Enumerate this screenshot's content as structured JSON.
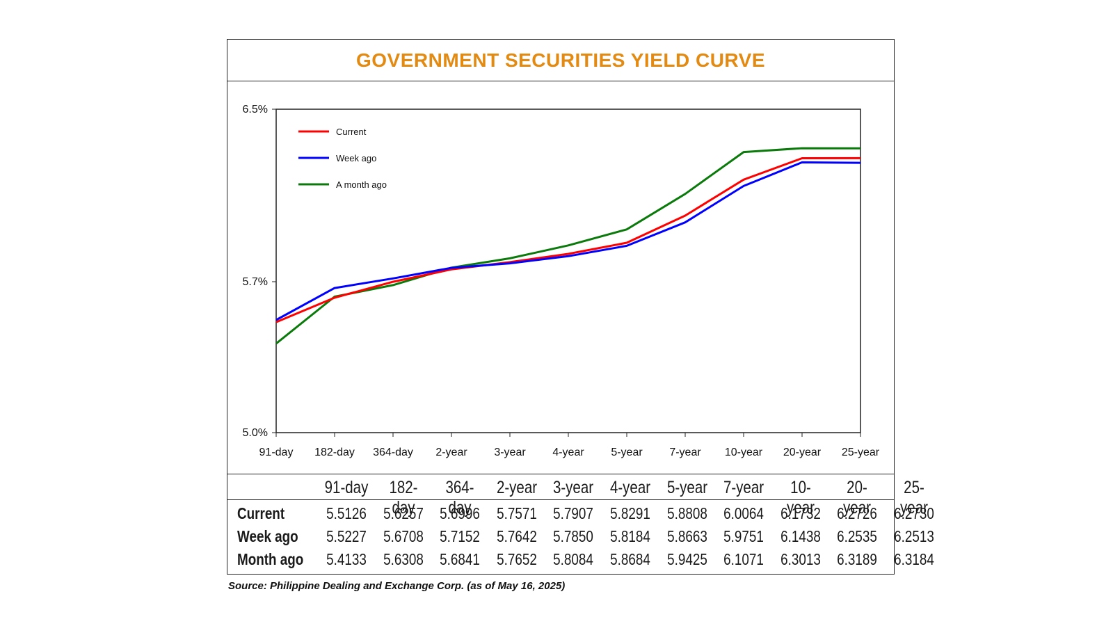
{
  "title": "GOVERNMENT SECURITIES YIELD CURVE",
  "source": "Source: Philippine Dealing and Exchange Corp. (as of May 16, 2025)",
  "chart_data": {
    "type": "line",
    "categories": [
      "91-day",
      "182-day",
      "364-day",
      "2-year",
      "3-year",
      "4-year",
      "5-year",
      "7-year",
      "10-year",
      "20-year",
      "25-year"
    ],
    "series": [
      {
        "name": "Current",
        "color": "#ff0000",
        "values": [
          5.5126,
          5.6257,
          5.6996,
          5.7571,
          5.7907,
          5.8291,
          5.8808,
          6.0064,
          6.1732,
          6.2726,
          6.273
        ]
      },
      {
        "name": "Week ago",
        "color": "#0000ff",
        "values": [
          5.5227,
          5.6708,
          5.7152,
          5.7642,
          5.785,
          5.8184,
          5.8663,
          5.9751,
          6.1438,
          6.2535,
          6.2513
        ]
      },
      {
        "name": "A month ago",
        "color": "#0a7a0a",
        "values": [
          5.4133,
          5.6308,
          5.6841,
          5.7652,
          5.8084,
          5.8684,
          5.9425,
          6.1071,
          6.3013,
          6.3189,
          6.3184
        ]
      }
    ],
    "ylim": [
      5.0,
      6.5
    ],
    "yticks": [
      "6.5%",
      "5.7%",
      "5.0%"
    ],
    "ytick_values": [
      6.5,
      5.7,
      5.0
    ],
    "legend": "top-left",
    "xlabel": "",
    "ylabel": ""
  },
  "table": {
    "headers": [
      "91-day",
      "182-day",
      "364-day",
      "2-year",
      "3-year",
      "4-year",
      "5-year",
      "7-year",
      "10-year",
      "20-year",
      "25-year"
    ],
    "rows": [
      {
        "label": "Current",
        "values": [
          "5.5126",
          "5.6257",
          "5.6996",
          "5.7571",
          "5.7907",
          "5.8291",
          "5.8808",
          "6.0064",
          "6.1732",
          "6.2726",
          "6.2730"
        ]
      },
      {
        "label": "Week ago",
        "values": [
          "5.5227",
          "5.6708",
          "5.7152",
          "5.7642",
          "5.7850",
          "5.8184",
          "5.8663",
          "5.9751",
          "6.1438",
          "6.2535",
          "6.2513"
        ]
      },
      {
        "label": "Month ago",
        "values": [
          "5.4133",
          "5.6308",
          "5.6841",
          "5.7652",
          "5.8084",
          "5.8684",
          "5.9425",
          "6.1071",
          "6.3013",
          "6.3189",
          "6.3184"
        ]
      }
    ]
  }
}
